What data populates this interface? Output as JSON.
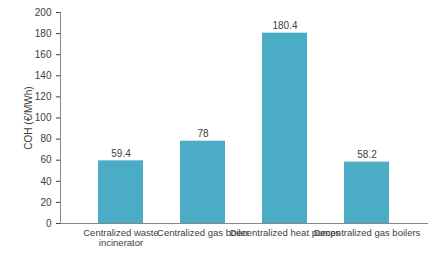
{
  "chart_data": {
    "type": "bar",
    "y_label": "COH (€/MWh)",
    "categories": [
      "Centralized waste incinerator",
      "Centralized gas boiler",
      "Decentralized heat pumps",
      "Decentralized gas boilers"
    ],
    "values": [
      59.4,
      78,
      180.4,
      58.2
    ],
    "color": "#4bacc6",
    "ylim": [
      0,
      200
    ],
    "yticks": [
      0,
      20,
      40,
      60,
      80,
      100,
      120,
      140,
      160,
      180,
      200
    ],
    "grid": false,
    "data_labels": true
  }
}
